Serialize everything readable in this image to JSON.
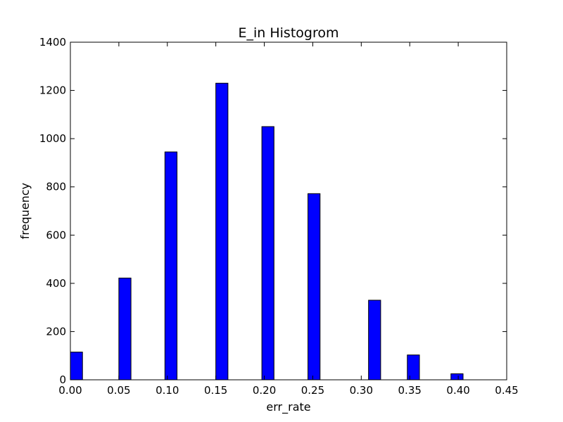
{
  "chart_data": {
    "type": "bar",
    "title": "E_in Histogrom",
    "xlabel": "err_rate",
    "ylabel": "frequency",
    "xlim": [
      0.0,
      0.45
    ],
    "ylim": [
      0,
      1400
    ],
    "x_ticks": [
      "0.00",
      "0.05",
      "0.10",
      "0.15",
      "0.20",
      "0.25",
      "0.30",
      "0.35",
      "0.40",
      "0.45"
    ],
    "y_ticks": [
      "0",
      "200",
      "400",
      "600",
      "800",
      "1000",
      "1200",
      "1400"
    ],
    "bin_width": 0.0125,
    "bins": [
      {
        "x": 0.0,
        "value": 115
      },
      {
        "x": 0.05,
        "value": 422
      },
      {
        "x": 0.0975,
        "value": 945
      },
      {
        "x": 0.15,
        "value": 1230
      },
      {
        "x": 0.1975,
        "value": 1050
      },
      {
        "x": 0.245,
        "value": 772
      },
      {
        "x": 0.3075,
        "value": 330
      },
      {
        "x": 0.3475,
        "value": 103
      },
      {
        "x": 0.3925,
        "value": 25
      }
    ],
    "bar_color": "#0000ff",
    "edge_color": "#000000",
    "grid": false
  }
}
